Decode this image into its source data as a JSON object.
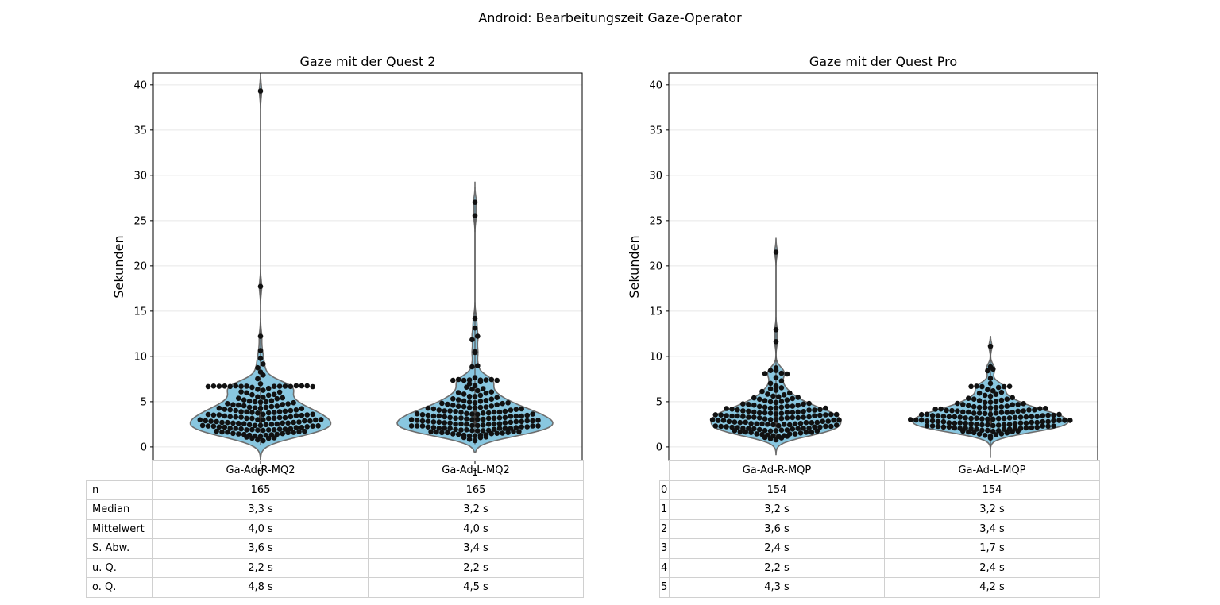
{
  "figure": {
    "title": "Android: Bearbeitungszeit Gaze-Operator"
  },
  "colors": {
    "violin_fill": "#89c7e0",
    "violin_edge": "#6e6e6e",
    "dot": "#111111",
    "grid": "#e6e6e6"
  },
  "chart_data": [
    {
      "type": "violin",
      "title": "Gaze mit der Quest 2",
      "ylabel": "Sekunden",
      "xlabel": "",
      "ylim": [
        -1.5,
        41.3
      ],
      "yticks": [
        "0",
        "5",
        "10",
        "15",
        "20",
        "25",
        "30",
        "35",
        "40"
      ],
      "xtick_labels": [
        "0",
        "1"
      ],
      "categories": [
        "Ga-Ad-R-MQ2",
        "Ga-Ad-L-MQ2"
      ],
      "grid": "horizontal",
      "series": [
        {
          "name": "Ga-Ad-R-MQ2",
          "n": 165,
          "median": 3.3,
          "mean": 4.0,
          "std": 3.6,
          "q1": 2.2,
          "q3": 4.8,
          "min": 0.2,
          "max": 39.3,
          "violin_extent": [
            -1.8,
            41.5
          ],
          "outliers": [
            39.3,
            17.7,
            12.2,
            10.6,
            9.8,
            9.2,
            8.7,
            8.3,
            7.9,
            7.5,
            7.0
          ]
        },
        {
          "name": "Ga-Ad-L-MQ2",
          "n": 165,
          "median": 3.2,
          "mean": 4.0,
          "std": 3.4,
          "q1": 2.2,
          "q3": 4.5,
          "min": 0.3,
          "max": 27.0,
          "violin_extent": [
            -0.6,
            29.3
          ],
          "outliers": [
            27.0,
            25.5,
            14.2,
            13.1,
            12.2,
            11.8,
            10.5,
            10.4,
            9.0,
            8.9,
            7.7
          ]
        }
      ],
      "table": {
        "row_labels": [
          "n",
          "Median",
          "Mittelwert",
          "S. Abw.",
          "u. Q.",
          "o. Q."
        ],
        "col_labels": [
          "Ga-Ad-R-MQ2",
          "Ga-Ad-L-MQ2"
        ],
        "cells": [
          [
            "165",
            "165"
          ],
          [
            "3,3 s",
            "3,2 s"
          ],
          [
            "4,0 s",
            "4,0 s"
          ],
          [
            "3,6 s",
            "3,4 s"
          ],
          [
            "2,2 s",
            "2,2 s"
          ],
          [
            "4,8 s",
            "4,5 s"
          ]
        ]
      }
    },
    {
      "type": "violin",
      "title": "Gaze mit der Quest Pro",
      "ylabel": "Sekunden",
      "xlabel": "",
      "ylim": [
        -1.5,
        41.3
      ],
      "yticks": [
        "0",
        "5",
        "10",
        "15",
        "20",
        "25",
        "30",
        "35",
        "40"
      ],
      "xtick_labels": [],
      "categories": [
        "Ga-Ad-R-MQP",
        "Ga-Ad-L-MQP"
      ],
      "grid": "horizontal",
      "series": [
        {
          "name": "Ga-Ad-R-MQP",
          "n": 154,
          "median": 3.2,
          "mean": 3.6,
          "std": 2.4,
          "q1": 2.2,
          "q3": 4.3,
          "min": 0.8,
          "max": 21.5,
          "violin_extent": [
            -0.9,
            23.1
          ],
          "outliers": [
            21.5,
            12.9,
            11.6,
            8.7,
            8.4,
            8.4
          ]
        },
        {
          "name": "Ga-Ad-L-MQP",
          "n": 154,
          "median": 3.2,
          "mean": 3.4,
          "std": 1.7,
          "q1": 2.4,
          "q3": 4.2,
          "min": 0.0,
          "max": 11.1,
          "violin_extent": [
            -1.2,
            12.2
          ],
          "outliers": [
            11.1,
            8.9,
            8.6,
            8.4,
            7.6,
            7.0
          ]
        }
      ],
      "table": {
        "row_labels": [
          "0",
          "1",
          "2",
          "3",
          "4",
          "5"
        ],
        "col_labels": [
          "Ga-Ad-R-MQP",
          "Ga-Ad-L-MQP"
        ],
        "cells": [
          [
            "154",
            "154"
          ],
          [
            "3,2 s",
            "3,2 s"
          ],
          [
            "3,6 s",
            "3,4 s"
          ],
          [
            "2,4 s",
            "1,7 s"
          ],
          [
            "2,2 s",
            "2,4 s"
          ],
          [
            "4,3 s",
            "4,2 s"
          ]
        ]
      }
    }
  ]
}
